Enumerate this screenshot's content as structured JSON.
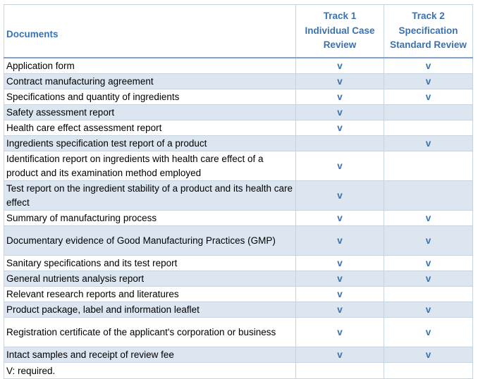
{
  "header": {
    "documents": "Documents",
    "track1": [
      "Track 1",
      "Individual Case",
      "Review"
    ],
    "track2": [
      "Track 2",
      "Specification",
      "Standard Review"
    ]
  },
  "mark_symbol": "v",
  "rows": [
    {
      "doc": "Application form",
      "t1": "v",
      "t2": "v"
    },
    {
      "doc": "Contract manufacturing agreement",
      "t1": "v",
      "t2": "v"
    },
    {
      "doc": "Specifications and quantity of ingredients",
      "t1": "v",
      "t2": "v"
    },
    {
      "doc": "Safety assessment report",
      "t1": "v",
      "t2": ""
    },
    {
      "doc": "Health care effect assessment report",
      "t1": "v",
      "t2": ""
    },
    {
      "doc": "Ingredients specification test report of a product",
      "t1": "",
      "t2": "v"
    },
    {
      "doc": "Identification report on ingredients with health care effect of a product and its examination method employed",
      "t1": "v",
      "t2": ""
    },
    {
      "doc": "Test report on the ingredient stability of a product and its health care effect",
      "t1": "v",
      "t2": ""
    },
    {
      "doc": "Summary of manufacturing process",
      "t1": "v",
      "t2": "v"
    },
    {
      "doc": "Documentary evidence of Good Manufacturing Practices (GMP)",
      "t1": "v",
      "t2": "v"
    },
    {
      "doc": "Sanitary specifications and its test report",
      "t1": "v",
      "t2": "v"
    },
    {
      "doc": "General nutrients analysis report",
      "t1": "v",
      "t2": "v"
    },
    {
      "doc": "Relevant research reports and literatures",
      "t1": "v",
      "t2": ""
    },
    {
      "doc": "Product package, label and information leaflet",
      "t1": "v",
      "t2": "v"
    },
    {
      "doc": "Registration certificate of the applicant's corporation or business",
      "t1": "v",
      "t2": "v"
    },
    {
      "doc": "Intact samples and receipt of review fee",
      "t1": "v",
      "t2": "v"
    }
  ],
  "footnote": "V: required."
}
